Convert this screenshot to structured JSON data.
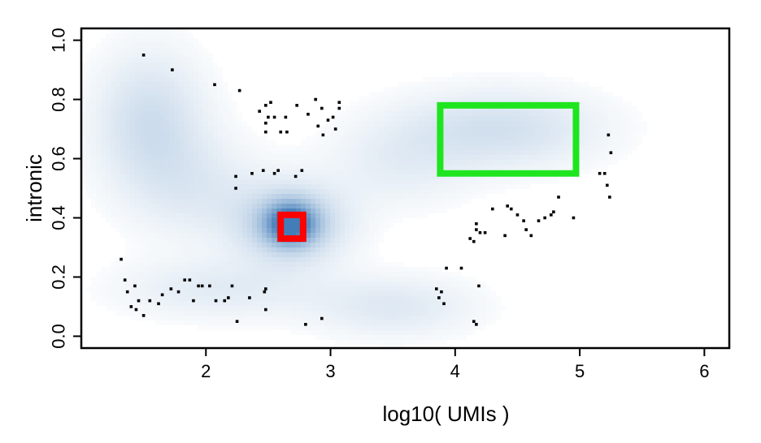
{
  "chart_data": {
    "type": "scatter",
    "title": "",
    "xlabel": "log10( UMIs )",
    "ylabel": "intronic",
    "xlim": [
      1.0,
      6.2
    ],
    "ylim": [
      -0.04,
      1.04
    ],
    "x_ticks": [
      2,
      3,
      4,
      5,
      6
    ],
    "y_ticks": [
      "0.0",
      "0.2",
      "0.4",
      "0.6",
      "0.8",
      "1.0"
    ],
    "grid": false,
    "legend": "none",
    "density_color": "#2166ac",
    "density_blobs": [
      {
        "cx": 2.68,
        "cy": 0.38,
        "sx": 0.13,
        "sy": 0.045,
        "w": 1.0
      },
      {
        "cx": 2.68,
        "cy": 0.38,
        "sx": 0.3,
        "sy": 0.09,
        "w": 0.35
      },
      {
        "cx": 1.55,
        "cy": 0.72,
        "sx": 0.3,
        "sy": 0.16,
        "w": 0.22
      },
      {
        "cx": 1.95,
        "cy": 0.5,
        "sx": 0.35,
        "sy": 0.12,
        "w": 0.12
      },
      {
        "cx": 4.35,
        "cy": 0.7,
        "sx": 0.55,
        "sy": 0.09,
        "w": 0.2
      },
      {
        "cx": 3.55,
        "cy": 0.58,
        "sx": 0.4,
        "sy": 0.1,
        "w": 0.1
      },
      {
        "cx": 3.5,
        "cy": 0.1,
        "sx": 0.45,
        "sy": 0.07,
        "w": 0.14
      },
      {
        "cx": 2.1,
        "cy": 0.16,
        "sx": 0.55,
        "sy": 0.07,
        "w": 0.12
      }
    ],
    "highlight_boxes": [
      {
        "name": "red",
        "color": "#ff0000",
        "x": [
          2.6,
          2.78
        ],
        "y": [
          0.33,
          0.41
        ]
      },
      {
        "name": "green",
        "color": "#1fe51f",
        "x": [
          3.88,
          4.97
        ],
        "y": [
          0.55,
          0.78
        ]
      }
    ],
    "points": [
      [
        1.5,
        0.95
      ],
      [
        1.73,
        0.9
      ],
      [
        2.07,
        0.85
      ],
      [
        2.27,
        0.83
      ],
      [
        2.43,
        0.76
      ],
      [
        2.48,
        0.78
      ],
      [
        2.5,
        0.74
      ],
      [
        2.52,
        0.79
      ],
      [
        2.48,
        0.72
      ],
      [
        2.55,
        0.74
      ],
      [
        2.48,
        0.69
      ],
      [
        2.6,
        0.69
      ],
      [
        2.64,
        0.74
      ],
      [
        2.65,
        0.69
      ],
      [
        2.73,
        0.78
      ],
      [
        2.82,
        0.75
      ],
      [
        2.88,
        0.8
      ],
      [
        2.93,
        0.77
      ],
      [
        2.98,
        0.73
      ],
      [
        2.9,
        0.71
      ],
      [
        2.94,
        0.68
      ],
      [
        3.04,
        0.7
      ],
      [
        3.07,
        0.77
      ],
      [
        3.07,
        0.79
      ],
      [
        3.02,
        0.74
      ],
      [
        2.24,
        0.54
      ],
      [
        2.24,
        0.5
      ],
      [
        2.37,
        0.55
      ],
      [
        2.46,
        0.56
      ],
      [
        2.55,
        0.55
      ],
      [
        2.58,
        0.56
      ],
      [
        2.72,
        0.54
      ],
      [
        2.77,
        0.56
      ],
      [
        1.32,
        0.26
      ],
      [
        1.35,
        0.19
      ],
      [
        1.37,
        0.15
      ],
      [
        1.4,
        0.1
      ],
      [
        1.43,
        0.17
      ],
      [
        1.46,
        0.12
      ],
      [
        1.44,
        0.09
      ],
      [
        1.5,
        0.07
      ],
      [
        1.55,
        0.12
      ],
      [
        1.62,
        0.11
      ],
      [
        1.65,
        0.14
      ],
      [
        1.72,
        0.16
      ],
      [
        1.78,
        0.15
      ],
      [
        1.83,
        0.19
      ],
      [
        1.87,
        0.19
      ],
      [
        1.9,
        0.12
      ],
      [
        1.94,
        0.17
      ],
      [
        1.97,
        0.17
      ],
      [
        2.03,
        0.17
      ],
      [
        2.08,
        0.12
      ],
      [
        2.15,
        0.12
      ],
      [
        2.18,
        0.13
      ],
      [
        2.21,
        0.17
      ],
      [
        2.25,
        0.05
      ],
      [
        2.35,
        0.13
      ],
      [
        2.47,
        0.15
      ],
      [
        2.48,
        0.16
      ],
      [
        2.48,
        0.09
      ],
      [
        2.8,
        0.04
      ],
      [
        2.93,
        0.06
      ],
      [
        3.85,
        0.16
      ],
      [
        3.87,
        0.13
      ],
      [
        3.89,
        0.15
      ],
      [
        3.91,
        0.11
      ],
      [
        3.93,
        0.23
      ],
      [
        4.05,
        0.23
      ],
      [
        4.12,
        0.33
      ],
      [
        4.15,
        0.32
      ],
      [
        4.17,
        0.36
      ],
      [
        4.2,
        0.35
      ],
      [
        4.17,
        0.38
      ],
      [
        4.24,
        0.35
      ],
      [
        4.15,
        0.05
      ],
      [
        4.17,
        0.04
      ],
      [
        4.19,
        0.17
      ],
      [
        4.3,
        0.43
      ],
      [
        4.4,
        0.34
      ],
      [
        4.42,
        0.44
      ],
      [
        4.45,
        0.43
      ],
      [
        4.5,
        0.41
      ],
      [
        4.55,
        0.39
      ],
      [
        4.57,
        0.36
      ],
      [
        4.61,
        0.34
      ],
      [
        4.67,
        0.39
      ],
      [
        4.72,
        0.4
      ],
      [
        4.77,
        0.41
      ],
      [
        4.79,
        0.42
      ],
      [
        4.83,
        0.47
      ],
      [
        4.95,
        0.4
      ],
      [
        5.16,
        0.55
      ],
      [
        5.2,
        0.55
      ],
      [
        5.22,
        0.51
      ],
      [
        5.24,
        0.47
      ],
      [
        5.23,
        0.68
      ],
      [
        5.25,
        0.62
      ]
    ]
  }
}
